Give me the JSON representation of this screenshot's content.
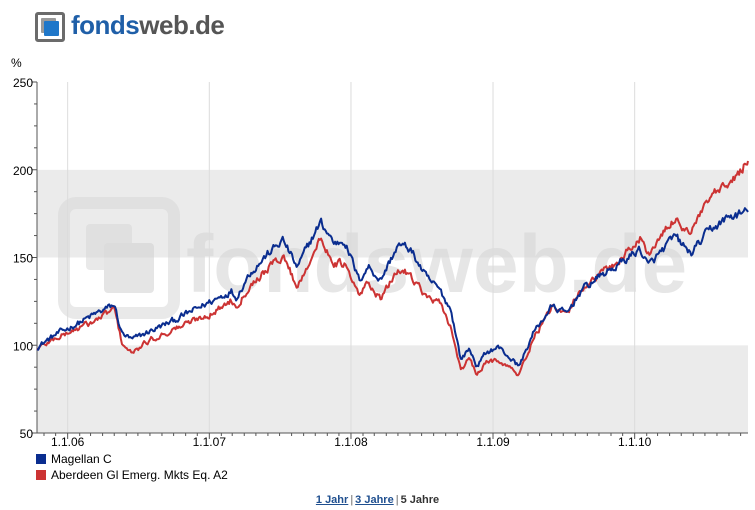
{
  "logo": {
    "part1": "fonds",
    "part2": "web.de"
  },
  "watermark": "fondsweb.de",
  "periods": {
    "p1": "1 Jahr",
    "p3": "3 Jahre",
    "p5": "5 Jahre",
    "sep": "|"
  },
  "chart_data": {
    "type": "line",
    "ylabel": "%",
    "ylim": [
      50,
      250
    ],
    "yticks": [
      50,
      100,
      150,
      200,
      250
    ],
    "xlim": [
      "2005-10-14",
      "2010-10-20"
    ],
    "xticks": [
      {
        "x": "2006-01-01",
        "label": "1.1.06"
      },
      {
        "x": "2007-01-01",
        "label": "1.1.07"
      },
      {
        "x": "2008-01-01",
        "label": "1.1.08"
      },
      {
        "x": "2009-01-01",
        "label": "1.1.09"
      },
      {
        "x": "2010-01-01",
        "label": "1.1.10"
      }
    ],
    "grid": true,
    "legend_position": "bottom-left",
    "series": [
      {
        "name": "Magellan C",
        "color": "#0a2d8f",
        "points": [
          [
            "2005-10-14",
            99
          ],
          [
            "2005-12-01",
            106
          ],
          [
            "2006-02-01",
            113
          ],
          [
            "2006-03-15",
            118
          ],
          [
            "2006-05-01",
            123
          ],
          [
            "2006-05-20",
            107
          ],
          [
            "2006-06-15",
            103
          ],
          [
            "2006-08-01",
            108
          ],
          [
            "2006-10-01",
            114
          ],
          [
            "2006-12-01",
            121
          ],
          [
            "2007-01-15",
            126
          ],
          [
            "2007-02-27",
            131
          ],
          [
            "2007-03-10",
            127
          ],
          [
            "2007-04-15",
            141
          ],
          [
            "2007-06-01",
            152
          ],
          [
            "2007-07-10",
            160
          ],
          [
            "2007-08-16",
            144
          ],
          [
            "2007-09-15",
            158
          ],
          [
            "2007-10-15",
            170
          ],
          [
            "2007-11-20",
            158
          ],
          [
            "2007-12-15",
            160
          ],
          [
            "2008-01-22",
            137
          ],
          [
            "2008-02-15",
            145
          ],
          [
            "2008-03-17",
            137
          ],
          [
            "2008-05-01",
            157
          ],
          [
            "2008-06-01",
            155
          ],
          [
            "2008-07-15",
            138
          ],
          [
            "2008-08-15",
            132
          ],
          [
            "2008-09-15",
            120
          ],
          [
            "2008-10-10",
            92
          ],
          [
            "2008-11-01",
            98
          ],
          [
            "2008-11-21",
            88
          ],
          [
            "2008-12-15",
            96
          ],
          [
            "2009-01-15",
            99
          ],
          [
            "2009-03-09",
            88
          ],
          [
            "2009-04-15",
            107
          ],
          [
            "2009-06-01",
            122
          ],
          [
            "2009-07-10",
            118
          ],
          [
            "2009-08-15",
            131
          ],
          [
            "2009-10-01",
            139
          ],
          [
            "2009-11-15",
            145
          ],
          [
            "2010-01-15",
            155
          ],
          [
            "2010-02-05",
            145
          ],
          [
            "2010-04-15",
            162
          ],
          [
            "2010-05-25",
            152
          ],
          [
            "2010-07-15",
            166
          ],
          [
            "2010-09-01",
            173
          ],
          [
            "2010-10-20",
            176
          ]
        ]
      },
      {
        "name": "Aberdeen Gl Emerg. Mkts Eq. A2",
        "color": "#cc3333",
        "points": [
          [
            "2005-10-14",
            98
          ],
          [
            "2005-12-01",
            104
          ],
          [
            "2006-02-01",
            110
          ],
          [
            "2006-03-15",
            114
          ],
          [
            "2006-05-01",
            121
          ],
          [
            "2006-05-20",
            102
          ],
          [
            "2006-06-15",
            95
          ],
          [
            "2006-08-01",
            103
          ],
          [
            "2006-10-01",
            109
          ],
          [
            "2006-12-01",
            115
          ],
          [
            "2007-01-15",
            119
          ],
          [
            "2007-02-27",
            126
          ],
          [
            "2007-03-10",
            122
          ],
          [
            "2007-04-15",
            134
          ],
          [
            "2007-06-01",
            144
          ],
          [
            "2007-07-10",
            151
          ],
          [
            "2007-08-16",
            133
          ],
          [
            "2007-09-15",
            148
          ],
          [
            "2007-10-15",
            160
          ],
          [
            "2007-11-20",
            147
          ],
          [
            "2007-12-15",
            146
          ],
          [
            "2008-01-22",
            128
          ],
          [
            "2008-02-15",
            136
          ],
          [
            "2008-03-17",
            126
          ],
          [
            "2008-05-01",
            143
          ],
          [
            "2008-06-01",
            141
          ],
          [
            "2008-07-15",
            127
          ],
          [
            "2008-08-15",
            124
          ],
          [
            "2008-09-15",
            110
          ],
          [
            "2008-10-10",
            86
          ],
          [
            "2008-11-01",
            92
          ],
          [
            "2008-11-21",
            83
          ],
          [
            "2008-12-15",
            90
          ],
          [
            "2009-01-15",
            92
          ],
          [
            "2009-03-09",
            83
          ],
          [
            "2009-04-15",
            104
          ],
          [
            "2009-06-01",
            121
          ],
          [
            "2009-07-10",
            117
          ],
          [
            "2009-08-15",
            132
          ],
          [
            "2009-10-01",
            140
          ],
          [
            "2009-11-15",
            147
          ],
          [
            "2010-01-15",
            161
          ],
          [
            "2010-02-05",
            152
          ],
          [
            "2010-04-15",
            172
          ],
          [
            "2010-05-25",
            164
          ],
          [
            "2010-07-15",
            184
          ],
          [
            "2010-09-01",
            191
          ],
          [
            "2010-10-20",
            205
          ]
        ]
      }
    ]
  }
}
